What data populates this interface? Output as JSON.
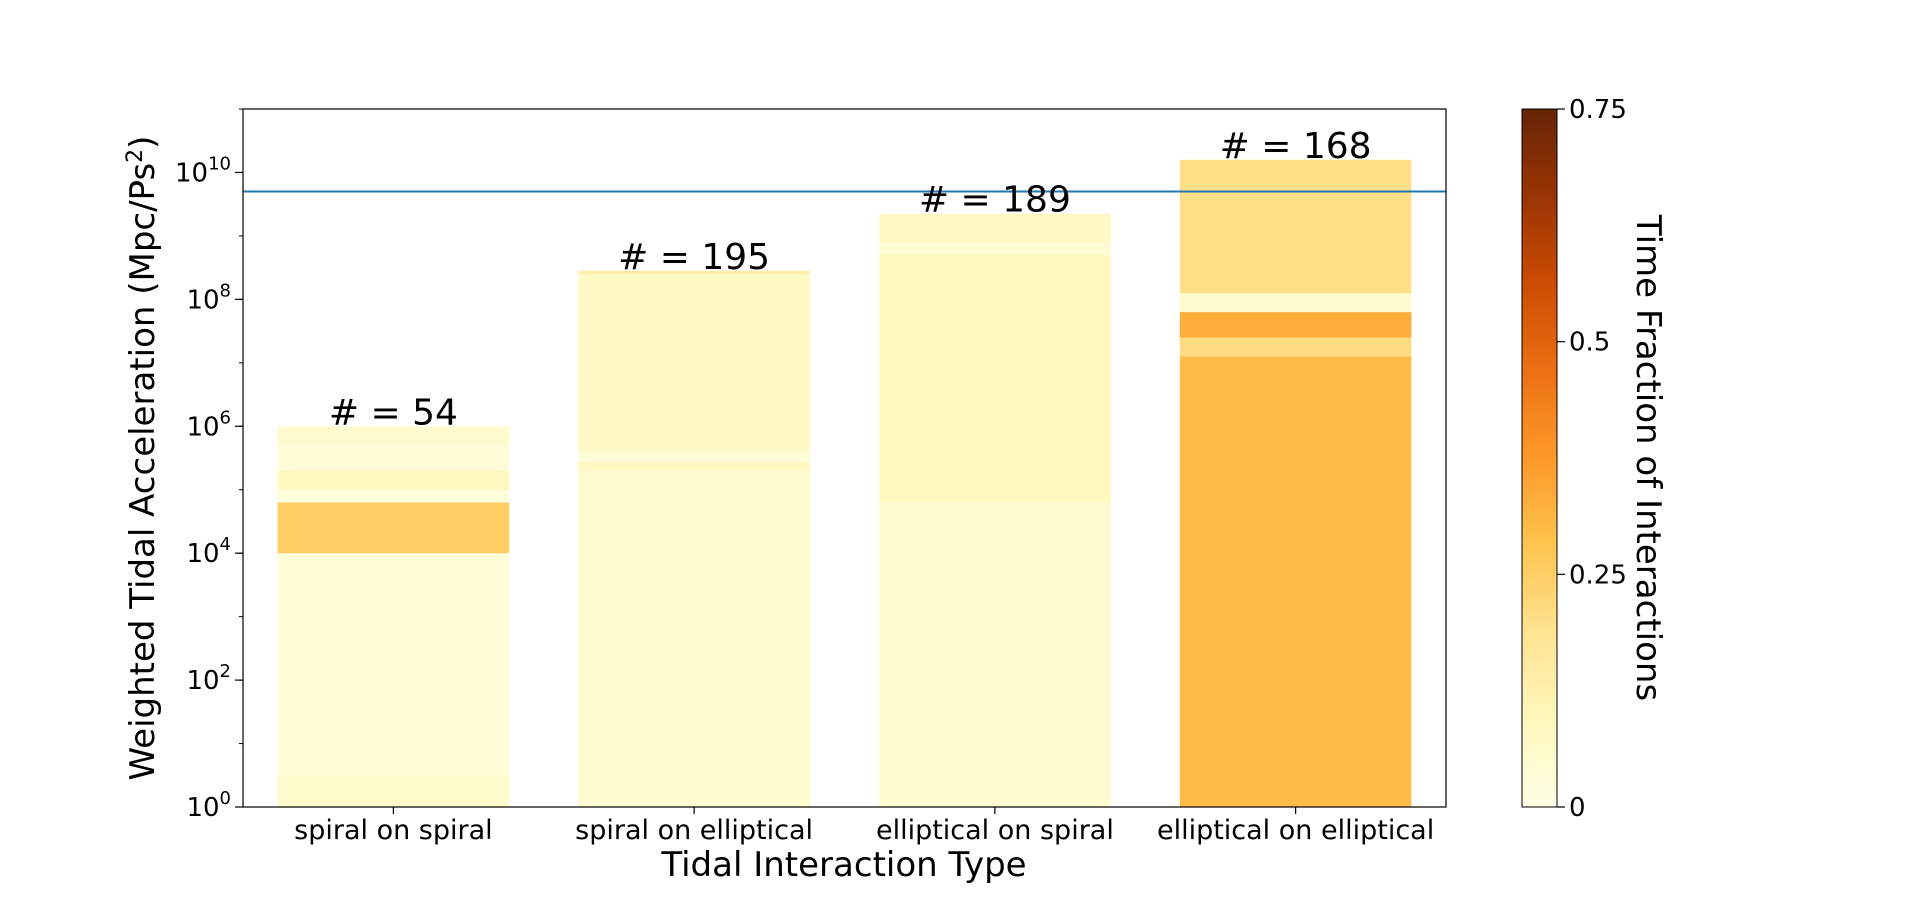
{
  "chart_data": {
    "type": "bar",
    "xlabel": "Tidal Interaction Type",
    "ylabel": "Weighted Tidal Acceleration (Mpc/Ps",
    "ylabel_sup": "2",
    "ylabel_close": ")",
    "yscale": "log",
    "ylim_exponent": [
      0,
      11
    ],
    "y_ticks": [
      {
        "exp": 0,
        "base": "10",
        "sup": "0"
      },
      {
        "exp": 2,
        "base": "10",
        "sup": "2"
      },
      {
        "exp": 4,
        "base": "10",
        "sup": "4"
      },
      {
        "exp": 6,
        "base": "10",
        "sup": "6"
      },
      {
        "exp": 8,
        "base": "10",
        "sup": "8"
      },
      {
        "exp": 10,
        "base": "10",
        "sup": "10"
      }
    ],
    "categories": [
      "spiral on spiral",
      "spiral on elliptical",
      "elliptical on spiral",
      "elliptical on elliptical"
    ],
    "count_labels": [
      "# = 54",
      "# = 195",
      "# = 189",
      "# = 168"
    ],
    "reference_line_y_exp": 9.7,
    "reference_line_color": "#1f77b4",
    "bars": [
      {
        "segments": [
          {
            "from_exp": 0,
            "to_exp": 0.5,
            "fraction": 0.06
          },
          {
            "from_exp": 0.5,
            "to_exp": 4.0,
            "fraction": 0.03
          },
          {
            "from_exp": 4.0,
            "to_exp": 4.8,
            "fraction": 0.25
          },
          {
            "from_exp": 4.8,
            "to_exp": 5.0,
            "fraction": 0.02
          },
          {
            "from_exp": 5.0,
            "to_exp": 5.3,
            "fraction": 0.09
          },
          {
            "from_exp": 5.3,
            "to_exp": 5.7,
            "fraction": 0.03
          },
          {
            "from_exp": 5.7,
            "to_exp": 6.0,
            "fraction": 0.05
          }
        ]
      },
      {
        "segments": [
          {
            "from_exp": 0,
            "to_exp": 5.3,
            "fraction": 0.05
          },
          {
            "from_exp": 5.3,
            "to_exp": 5.45,
            "fraction": 0.08
          },
          {
            "from_exp": 5.45,
            "to_exp": 5.6,
            "fraction": 0.03
          },
          {
            "from_exp": 5.6,
            "to_exp": 8.4,
            "fraction": 0.07
          },
          {
            "from_exp": 8.4,
            "to_exp": 8.45,
            "fraction": 0.14
          }
        ]
      },
      {
        "segments": [
          {
            "from_exp": 0,
            "to_exp": 4.8,
            "fraction": 0.05
          },
          {
            "from_exp": 4.8,
            "to_exp": 8.7,
            "fraction": 0.09
          },
          {
            "from_exp": 8.7,
            "to_exp": 8.9,
            "fraction": 0.04
          },
          {
            "from_exp": 8.9,
            "to_exp": 9.35,
            "fraction": 0.08
          }
        ]
      },
      {
        "segments": [
          {
            "from_exp": 0,
            "to_exp": 7.1,
            "fraction": 0.3
          },
          {
            "from_exp": 7.1,
            "to_exp": 7.4,
            "fraction": 0.21
          },
          {
            "from_exp": 7.4,
            "to_exp": 7.8,
            "fraction": 0.33
          },
          {
            "from_exp": 7.8,
            "to_exp": 8.1,
            "fraction": 0.05
          },
          {
            "from_exp": 8.1,
            "to_exp": 10.2,
            "fraction": 0.2
          }
        ]
      }
    ],
    "colorbar": {
      "label": "Time Fraction of Interactions",
      "min": 0,
      "max": 0.75,
      "colormap": "YlOrBr",
      "ticks": [
        {
          "value": 0,
          "label": "0"
        },
        {
          "value": 0.25,
          "label": "0.25"
        },
        {
          "value": 0.5,
          "label": "0.5"
        },
        {
          "value": 0.75,
          "label": "0.75"
        }
      ]
    }
  }
}
